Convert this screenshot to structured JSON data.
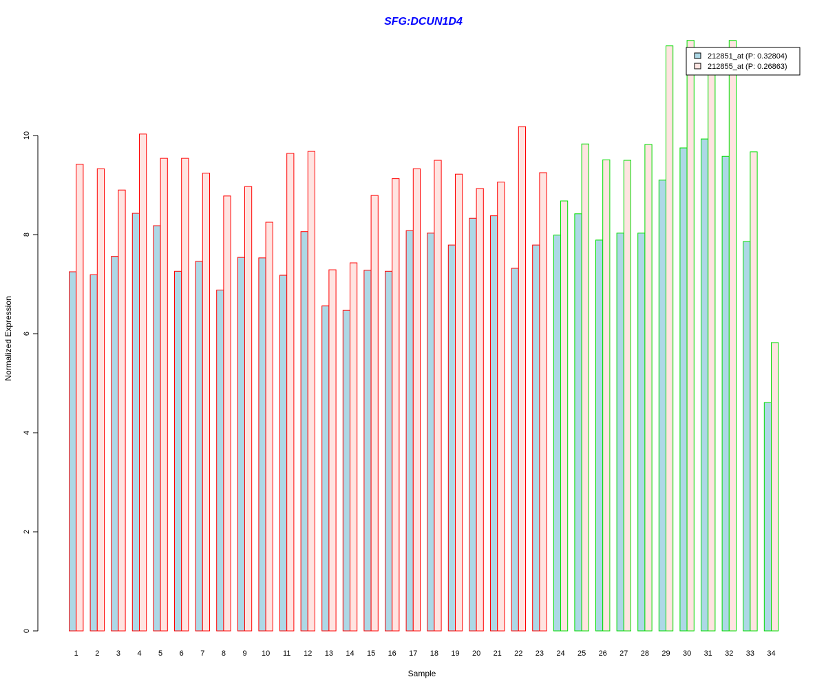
{
  "chart_data": {
    "type": "bar",
    "title": "SFG:DCUN1D4",
    "xlabel": "Sample",
    "ylabel": "Normalized Expression",
    "ylim": [
      0,
      11.92
    ],
    "yticks": [
      "0",
      "2",
      "4",
      "6",
      "8",
      "10"
    ],
    "categories": [
      "1",
      "2",
      "3",
      "4",
      "5",
      "6",
      "7",
      "8",
      "9",
      "10",
      "11",
      "12",
      "13",
      "14",
      "15",
      "16",
      "17",
      "18",
      "19",
      "20",
      "21",
      "22",
      "23",
      "24",
      "25",
      "26",
      "27",
      "28",
      "29",
      "30",
      "31",
      "32",
      "33",
      "34"
    ],
    "group_border_colors": {
      "1-23": "#ff0000",
      "24-34": "#00dd00"
    },
    "series": [
      {
        "name": "212851_at (P: 0.32804)",
        "color": "#add8e6",
        "values": [
          7.25,
          7.19,
          7.56,
          8.43,
          8.18,
          7.26,
          7.46,
          6.88,
          7.54,
          7.53,
          7.18,
          8.06,
          6.56,
          6.47,
          7.28,
          7.26,
          8.08,
          8.03,
          7.79,
          8.33,
          8.38,
          7.32,
          7.79,
          7.99,
          8.42,
          7.89,
          8.03,
          8.03,
          9.1,
          9.75,
          9.93,
          9.58,
          7.86,
          4.61
        ]
      },
      {
        "name": "212855_at (P: 0.26863)",
        "color": "#ffe4e1",
        "values": [
          9.42,
          9.33,
          8.9,
          10.03,
          9.54,
          9.54,
          9.24,
          8.78,
          8.97,
          8.25,
          9.64,
          9.68,
          7.29,
          7.43,
          8.79,
          9.13,
          9.33,
          9.5,
          9.22,
          8.93,
          9.06,
          10.18,
          9.25,
          8.68,
          9.83,
          9.51,
          9.5,
          9.82,
          11.81,
          11.92,
          11.5,
          11.92,
          9.67,
          5.82
        ]
      }
    ],
    "legend": "top-right"
  }
}
